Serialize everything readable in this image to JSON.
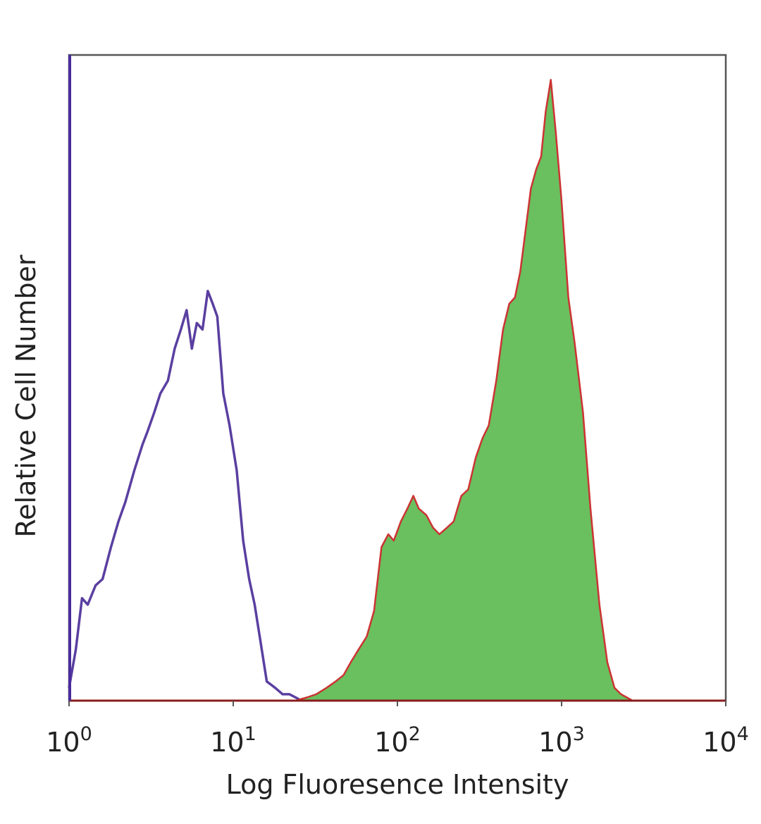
{
  "chart_data": {
    "type": "area",
    "title": "",
    "xlabel": "Log Fluoresence Intensity",
    "ylabel": "Relative Cell Number",
    "x_scale": "log",
    "xlim": [
      1,
      10000
    ],
    "ylim": [
      0,
      100
    ],
    "x_ticks": [
      {
        "base": "10",
        "exp": "0",
        "value": 1
      },
      {
        "base": "10",
        "exp": "1",
        "value": 10
      },
      {
        "base": "10",
        "exp": "2",
        "value": 100
      },
      {
        "base": "10",
        "exp": "3",
        "value": 1000
      },
      {
        "base": "10",
        "exp": "4",
        "value": 10000
      }
    ],
    "y_ticks_shown": false,
    "grid": false,
    "legend": "none",
    "series": [
      {
        "style": "outline",
        "color": "#5a3fa0",
        "x": [
          1.0,
          1.1,
          1.2,
          1.3,
          1.45,
          1.6,
          1.8,
          2.0,
          2.2,
          2.5,
          2.8,
          3.0,
          3.3,
          3.6,
          4.0,
          4.4,
          4.8,
          5.2,
          5.6,
          6.0,
          6.5,
          7.0,
          7.5,
          8.0,
          8.7,
          9.5,
          10.5,
          11.5,
          12.5,
          13.5,
          14.5,
          16.0,
          18.0,
          20.0,
          22.0,
          24.0,
          26.0
        ],
        "y": [
          2,
          8,
          16,
          15,
          18,
          19,
          24,
          28,
          31,
          36,
          40,
          42,
          45,
          48,
          50,
          55,
          58,
          61,
          55,
          59,
          58,
          64,
          62,
          60,
          48,
          43,
          36,
          25,
          19,
          15,
          10,
          3,
          2,
          1,
          1,
          0.5,
          0
        ]
      },
      {
        "style": "filled",
        "color": "#6abf5e",
        "outline_color": "#cc3333",
        "x": [
          24,
          28,
          32,
          37,
          42,
          47,
          52,
          58,
          65,
          72,
          80,
          88,
          95,
          105,
          115,
          125,
          135,
          150,
          165,
          180,
          200,
          220,
          245,
          270,
          300,
          330,
          360,
          400,
          440,
          480,
          520,
          560,
          600,
          650,
          700,
          750,
          800,
          860,
          920,
          1000,
          1100,
          1200,
          1350,
          1500,
          1700,
          1900,
          2100,
          2300,
          2500,
          2700
        ],
        "y": [
          0,
          0.5,
          1,
          2,
          3,
          4,
          6,
          8,
          10,
          14,
          24,
          26,
          25,
          28,
          30,
          32,
          30,
          29,
          27,
          26,
          27,
          28,
          32,
          33,
          38,
          41,
          43,
          50,
          58,
          62,
          63,
          67,
          73,
          80,
          83,
          85,
          92,
          97,
          89,
          78,
          63,
          56,
          45,
          30,
          15,
          6,
          2,
          1,
          0.5,
          0
        ]
      }
    ]
  }
}
